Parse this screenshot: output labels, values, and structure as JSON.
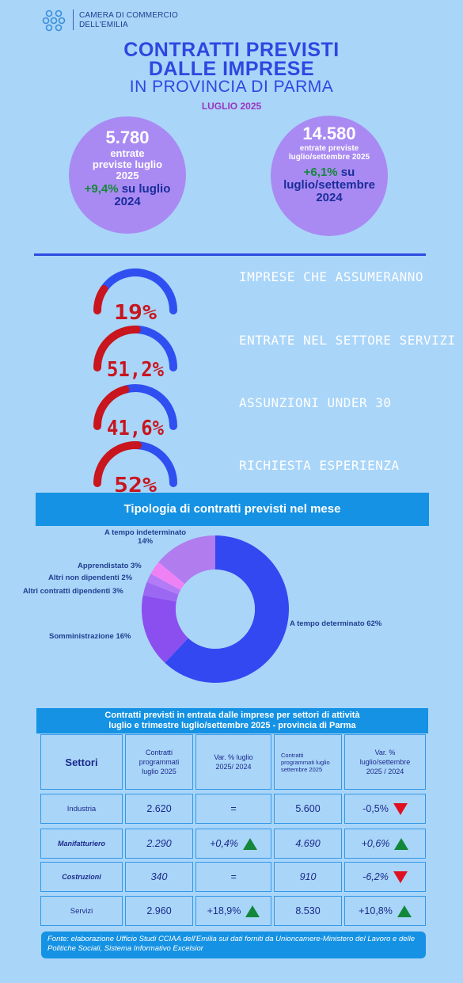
{
  "header": {
    "org_line1": "CAMERA DI COMMERCIO",
    "org_line2": "DELL'EMILIA",
    "title_line1": "CONTRATTI PREVISTI",
    "title_line2": "DALLE IMPRESE",
    "title_line3": "IN PROVINCIA DI PARMA",
    "month": "LUGLIO 2025"
  },
  "kpi": {
    "monthly": {
      "value": "5.780",
      "label": "entrate previste luglio 2025",
      "var": "+9,4%",
      "var_text": "su luglio 2024"
    },
    "quarter": {
      "value": "14.580",
      "label": "entrate previste luglio/settembre 2025",
      "var": "+6,1%",
      "var_text": "su luglio/settembre 2024"
    }
  },
  "gauges": [
    {
      "percent": "19%",
      "fraction": 0.19,
      "label": "IMPRESE CHE ASSUMERANNO"
    },
    {
      "percent": "51,2%",
      "fraction": 0.512,
      "label": "ENTRATE NEL SETTORE SERVIZI"
    },
    {
      "percent": "41,6%",
      "fraction": 0.416,
      "label": "ASSUNZIONI  UNDER 30"
    },
    {
      "percent": "52%",
      "fraction": 0.52,
      "label": "RICHIESTA ESPERIENZA"
    }
  ],
  "colors": {
    "gauge_fill": "#c8151e",
    "gauge_track": "#2f4ff0",
    "accent": "#1592e3"
  },
  "contracts": {
    "title": "Tipologia di contratti previsti nel mese",
    "chart_data": {
      "type": "pie",
      "categories": [
        "A tempo determinato",
        "Somministrazione",
        "Altri contratti dipendenti",
        "Altri non dipendenti",
        "Apprendistato",
        "A tempo indeterminato"
      ],
      "values": [
        62,
        16,
        3,
        2,
        3,
        14
      ],
      "colors": [
        "#3448f2",
        "#8a4fee",
        "#9a68f2",
        "#b47bf6",
        "#ee82f4",
        "#b07cee"
      ],
      "labels": {
        "det": "A tempo determinato 62%",
        "somm": "Somministrazione 16%",
        "altri_dip": "Altri contratti dipendenti 3%",
        "altri_non": "Altri non dipendenti 2%",
        "appr": "Apprendistato 3%",
        "indet_line1": "A tempo indeterminato",
        "indet_line2": "14%"
      }
    }
  },
  "table": {
    "title_line1": "Contratti previsti in entrata dalle imprese per settori di attività",
    "title_line2": "luglio e trimestre luglio/settembre 2025  - provincia di Parma",
    "headers": {
      "sector": "Settori",
      "month": "Contratti programmati luglio 2025",
      "var_month": "Var. % luglio 2025/ 2024",
      "quarter": "Contratti programmati luglio settembre 2025",
      "var_quarter": "Var. % luglio/settembre 2025 / 2024"
    },
    "rows": [
      {
        "sector": "Industria",
        "month": "2.620",
        "var_month": "=",
        "var_month_trend": "none",
        "quarter": "5.600",
        "var_quarter": "-0,5%",
        "var_quarter_trend": "down",
        "italic": false
      },
      {
        "sector": "Manifatturiero",
        "month": "2.290",
        "var_month": "+0,4%",
        "var_month_trend": "up",
        "quarter": "4.690",
        "var_quarter": "+0,6%",
        "var_quarter_trend": "up",
        "italic": true
      },
      {
        "sector": "Costruzioni",
        "month": "340",
        "var_month": "=",
        "var_month_trend": "none",
        "quarter": "910",
        "var_quarter": "-6,2%",
        "var_quarter_trend": "down",
        "italic": true
      },
      {
        "sector": "Servizi",
        "month": "2.960",
        "var_month": "+18,9%",
        "var_month_trend": "up",
        "quarter": "8.530",
        "var_quarter": "+10,8%",
        "var_quarter_trend": "up",
        "italic": false
      }
    ]
  },
  "footer": "Fonte: elaborazione Ufficio Studi CCIAA dell'Emilia sui dati forniti da Unioncamere-Ministero del Lavoro e delle Politiche Sociali, Sistema Informativo Excelsior"
}
